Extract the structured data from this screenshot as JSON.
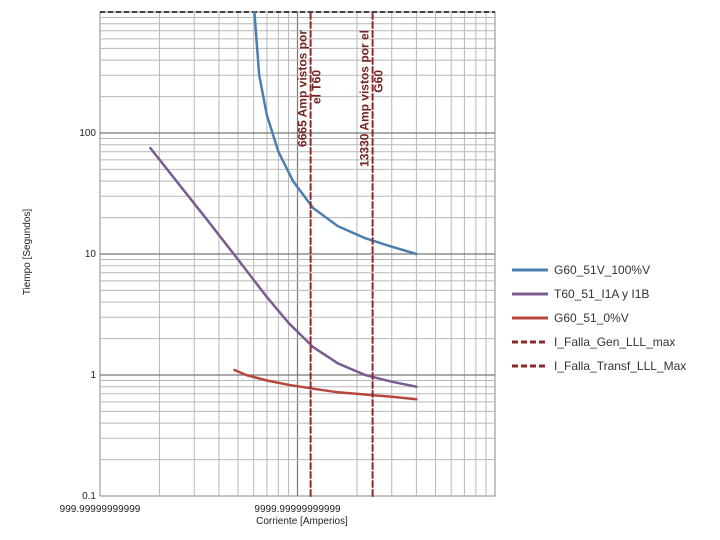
{
  "chart_data": {
    "type": "line",
    "xscale": "log",
    "yscale": "log",
    "xlim": [
      1000,
      100000
    ],
    "ylim": [
      0.1,
      1000
    ],
    "xlabel": "Corriente [Amperios]",
    "ylabel": "Tiempo [Segundos]",
    "x_tick_labels": [
      "999.99999999999",
      "9999.99999999999"
    ],
    "y_tick_labels": [
      "0.1",
      "1",
      "10",
      "100"
    ],
    "y_tick_values": [
      0.1,
      1,
      10,
      100
    ],
    "x_tick_values": [
      1000,
      10000
    ],
    "grid": true,
    "legend_position": "right",
    "series": [
      {
        "name": "G60_51V_100%V",
        "color": "#4a7fb0",
        "style": "solid",
        "x": [
          6050,
          6400,
          7000,
          8000,
          9500,
          12000,
          16000,
          22000,
          30000,
          40000
        ],
        "y": [
          1000,
          300,
          140,
          70,
          40,
          24,
          17,
          13.5,
          11.5,
          10
        ]
      },
      {
        "name": "T60_51_I1A y I1B",
        "color": "#7a5c92",
        "style": "solid",
        "x": [
          1800,
          2500,
          3500,
          5000,
          7000,
          9000,
          12000,
          16000,
          22000,
          30000,
          40000
        ],
        "y": [
          75,
          38,
          19,
          9,
          4.4,
          2.7,
          1.7,
          1.25,
          1.0,
          0.88,
          0.8
        ]
      },
      {
        "name": "G60_51_0%V",
        "color": "#b5473c",
        "style": "solid",
        "x": [
          4800,
          5500,
          7000,
          9000,
          12000,
          16000,
          22000,
          30000,
          40000
        ],
        "y": [
          1.1,
          1.0,
          0.9,
          0.83,
          0.77,
          0.72,
          0.69,
          0.66,
          0.63
        ]
      },
      {
        "name": "I_Falla_Gen_LLL_max",
        "color": "#8b2a2a",
        "style": "dashed",
        "x": [
          11650,
          11650
        ],
        "y": [
          0.1,
          1000
        ]
      },
      {
        "name": "I_Falla_Transf_LLL_Max",
        "color": "#8b2a2a",
        "style": "dashed",
        "x": [
          24000,
          24000
        ],
        "y": [
          0.1,
          1000
        ]
      }
    ],
    "annotations": [
      {
        "text": "6665 Amp vistos por",
        "line2": "el T60",
        "series": 3
      },
      {
        "text": "13330 Amp vistos por el",
        "line2": "G60",
        "series": 4
      }
    ],
    "top_reference_line": {
      "y": 1000,
      "style": "dashed",
      "color": "#000000"
    }
  }
}
